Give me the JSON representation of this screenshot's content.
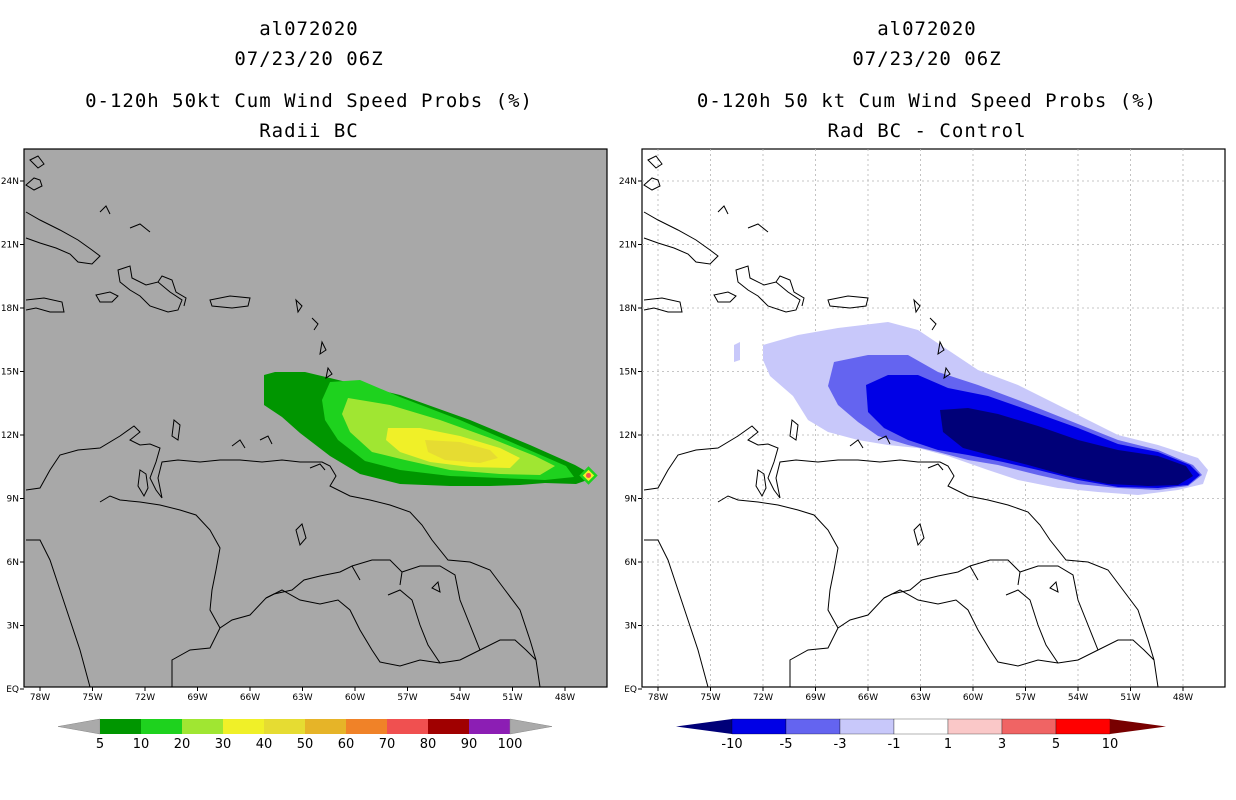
{
  "left_panel": {
    "title_line1": "al072020",
    "title_line2": "07/23/20 06Z",
    "title_line3": "0-120h 50kt Cum Wind Speed Probs (%)",
    "title_line4": "Radii BC",
    "background_color": "#a8a8a8",
    "colorbar": {
      "labels": [
        "5",
        "10",
        "20",
        "30",
        "40",
        "50",
        "60",
        "70",
        "80",
        "90",
        "100"
      ],
      "colors": [
        "#009600",
        "#1ed21e",
        "#a0e632",
        "#f0f028",
        "#e6dc32",
        "#e6b428",
        "#f08228",
        "#f05050",
        "#a00000",
        "#8c1eb4"
      ],
      "end_arrow_color": "#aaaaaa"
    }
  },
  "right_panel": {
    "title_line1": "al072020",
    "title_line2": "07/23/20 06Z",
    "title_line3": "0-120h 50 kt Cum Wind Speed Probs (%)",
    "title_line4": "Rad BC - Control",
    "background_color": "#ffffff",
    "colorbar": {
      "labels": [
        "-10",
        "-5",
        "-3",
        "-1",
        "1",
        "3",
        "5",
        "10"
      ],
      "colors": [
        "#000078",
        "#0000e6",
        "#6464f0",
        "#c8c8fa",
        "#ffffff",
        "#fac8c8",
        "#f06464",
        "#ff0000",
        "#780000"
      ]
    }
  },
  "axes": {
    "lon_labels": [
      "78W",
      "75W",
      "72W",
      "69W",
      "66W",
      "63W",
      "60W",
      "57W",
      "54W",
      "51W",
      "48W"
    ],
    "lat_labels": [
      "24N",
      "21N",
      "18N",
      "15N",
      "12N",
      "9N",
      "6N",
      "3N",
      "EQ"
    ]
  }
}
